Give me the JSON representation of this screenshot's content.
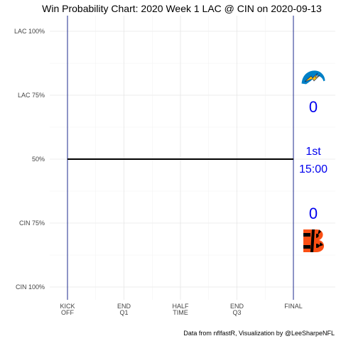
{
  "chart_data": {
    "type": "line",
    "title": "Win Probability Chart: 2020 Week 1 LAC @ CIN on 2020-09-13",
    "y_tick_labels": [
      "LAC 100%",
      "LAC 75%",
      "50%",
      "CIN 75%",
      "CIN 100%"
    ],
    "y_tick_values": [
      1.0,
      0.75,
      0.5,
      0.25,
      0.0
    ],
    "ylim": [
      0,
      1
    ],
    "x_tick_labels": [
      {
        "line1": "KICK",
        "line2": "OFF"
      },
      {
        "line1": "END",
        "line2": "Q1"
      },
      {
        "line1": "HALF",
        "line2": "TIME"
      },
      {
        "line1": "END",
        "line2": "Q3"
      },
      {
        "line1": "FINAL",
        "line2": ""
      }
    ],
    "x_tick_values": [
      0,
      15,
      30,
      45,
      60
    ],
    "xlim": [
      0,
      70
    ],
    "series": [
      {
        "x": [
          0,
          60
        ],
        "y": [
          0.5,
          0.5
        ]
      }
    ],
    "grid": true,
    "vertical_lines_at": [
      0,
      60
    ],
    "away_team": {
      "abbr": "LAC",
      "score": "0",
      "logo": "chargers-bolt-helmet-icon",
      "colors": [
        "#0080c6",
        "#ffc20e"
      ]
    },
    "home_team": {
      "abbr": "CIN",
      "score": "0",
      "logo": "bengals-b-icon",
      "colors": [
        "#fb4f14",
        "#000000"
      ]
    },
    "quarter": "1st",
    "clock": "15:00",
    "caption": "Data from nflfastR, Visualization by @LeeSharpeNFL",
    "line_color": "#000000",
    "vline_color": "#1c2a8c",
    "score_color": "#0000ee"
  }
}
